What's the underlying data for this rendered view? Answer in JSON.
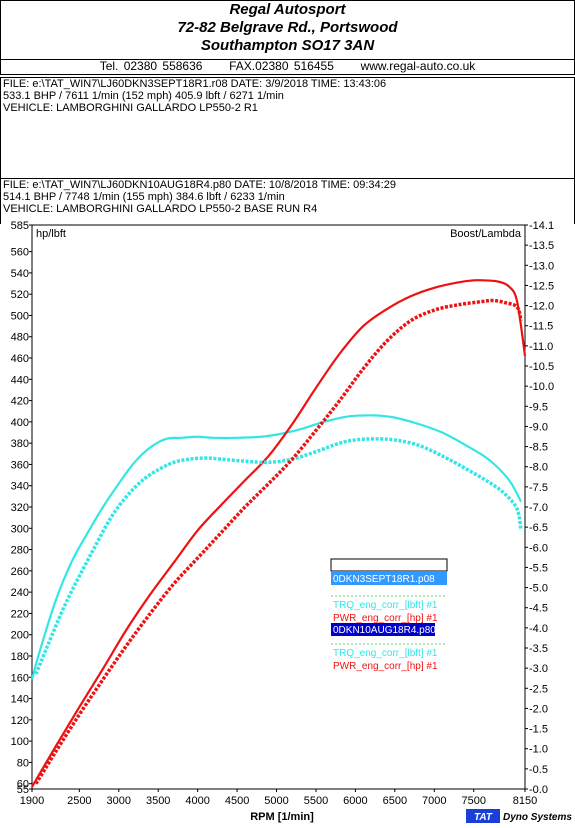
{
  "header": {
    "company": "Regal Autosport",
    "address1": "72-82 Belgrave Rd., Portswood",
    "address2": "Southampton SO17 3AN",
    "tel": "Tel. 02380 558636",
    "fax": "FAX.02380 516455",
    "web": "www.regal-auto.co.uk"
  },
  "run1": {
    "file": "FILE: e:\\TAT_WIN7\\LJ60DKN3SEPT18R1.r08  DATE: 3/9/2018  TIME: 13:43:06",
    "result": "533.1 BHP / 7611 1/min (152 mph)    405.9 lbft / 6271 1/min",
    "vehicle": "VEHICLE: LAMBORGHINI GALLARDO LP550-2 R1"
  },
  "run2": {
    "file": "FILE: e:\\TAT_WIN7\\LJ60DKN10AUG18R4.p80  DATE: 10/8/2018  TIME: 09:34:29",
    "result": "514.1 BHP / 7748 1/min (155 mph)    384.6 lbft / 6233 1/min",
    "vehicle": "VEHICLE: LAMBORGHINI GALLARDO LP550-2 BASE RUN R4"
  },
  "brand": {
    "tat": "TAT",
    "name": "Dyno Systems"
  },
  "legend": {
    "run1_name": "0DKN3SEPT18R1.p08",
    "run2_name": "0DKN10AUG18R4.p80",
    "trq_label": "TRQ_eng_corr_[lbft] #1",
    "pwr_label": "PWR_eng_corr_[hp] #1"
  },
  "colors": {
    "torque": "#33e6e6",
    "power": "#ee1111",
    "legend_run1": "#3399ff",
    "legend_run2": "#0000cc",
    "tat": "#1a3fd6"
  },
  "chart_data": {
    "type": "line",
    "xlabel": "RPM  [1/min]",
    "ylabel": "hp/lbft",
    "y2label": "Boost/Lambda",
    "xlim": [
      1900,
      8150
    ],
    "ylim": [
      55,
      585
    ],
    "y2lim": [
      -0.0,
      14.1
    ],
    "xticks": [
      1900,
      2500,
      3000,
      3500,
      4000,
      4500,
      5000,
      5500,
      6000,
      6500,
      7000,
      7500,
      8150
    ],
    "yticks": [
      55,
      60,
      80,
      100,
      120,
      140,
      160,
      180,
      200,
      220,
      240,
      260,
      280,
      300,
      320,
      340,
      360,
      380,
      400,
      420,
      440,
      460,
      480,
      500,
      520,
      540,
      560,
      585
    ],
    "y2ticks": [
      "-0.0",
      "-0.5",
      "-1.0",
      "-1.5",
      "-2.0",
      "-2.5",
      "-3.0",
      "-3.5",
      "-4.0",
      "-4.5",
      "-5.0",
      "-5.5",
      "-6.0",
      "-6.5",
      "-7.0",
      "-7.5",
      "-8.0",
      "-8.5",
      "-9.0",
      "-9.5",
      "-10.0",
      "-10.5",
      "-11.0",
      "-11.5",
      "-12.0",
      "-12.5",
      "-13.0",
      "-13.5",
      "-14.1"
    ],
    "series": [
      {
        "name": "TRQ_eng_corr_[lbft] #1",
        "run": "0DKN3SEPT18R1.p08",
        "color": "#33e6e6",
        "style": "solid",
        "x": [
          1900,
          2000,
          2200,
          2400,
          2600,
          2800,
          3000,
          3200,
          3400,
          3600,
          3800,
          4000,
          4200,
          4500,
          4800,
          5000,
          5300,
          5600,
          5900,
          6100,
          6271,
          6500,
          6800,
          7100,
          7400,
          7700,
          7950,
          8100
        ],
        "y": [
          158,
          185,
          232,
          268,
          295,
          320,
          342,
          362,
          376,
          384,
          385,
          386,
          385,
          385,
          386,
          388,
          393,
          400,
          405,
          406,
          406,
          404,
          398,
          390,
          378,
          364,
          345,
          325
        ]
      },
      {
        "name": "PWR_eng_corr_[hp] #1",
        "run": "0DKN3SEPT18R1.p08",
        "color": "#ee1111",
        "style": "solid",
        "x": [
          1900,
          2200,
          2500,
          2800,
          3100,
          3400,
          3700,
          4000,
          4300,
          4600,
          4900,
          5200,
          5500,
          5800,
          6100,
          6400,
          6700,
          7000,
          7300,
          7500,
          7611,
          7800,
          7950,
          8050,
          8150
        ],
        "y": [
          57,
          95,
          132,
          168,
          205,
          238,
          268,
          298,
          322,
          345,
          368,
          398,
          432,
          464,
          490,
          506,
          518,
          526,
          531,
          533,
          533,
          532,
          527,
          513,
          462
        ]
      },
      {
        "name": "TRQ_eng_corr_[lbft] #1",
        "run": "0DKN10AUG18R4.p80",
        "color": "#33e6e6",
        "style": "dotted",
        "x": [
          1950,
          2100,
          2300,
          2500,
          2700,
          2900,
          3100,
          3300,
          3500,
          3700,
          3900,
          4100,
          4300,
          4600,
          4900,
          5200,
          5500,
          5800,
          6000,
          6233,
          6500,
          6800,
          7100,
          7400,
          7700,
          7900,
          8050,
          8100
        ],
        "y": [
          163,
          190,
          225,
          255,
          283,
          310,
          330,
          345,
          355,
          362,
          365,
          366,
          365,
          363,
          362,
          365,
          372,
          380,
          383,
          384,
          383,
          378,
          368,
          356,
          343,
          332,
          318,
          298
        ]
      },
      {
        "name": "PWR_eng_corr_[hp] #1",
        "run": "0DKN10AUG18R4.p80",
        "color": "#ee1111",
        "style": "dotted",
        "x": [
          1950,
          2200,
          2500,
          2800,
          3100,
          3400,
          3700,
          4000,
          4300,
          4600,
          4900,
          5200,
          5500,
          5800,
          6100,
          6400,
          6700,
          7000,
          7300,
          7600,
          7748,
          7900,
          8050,
          8100
        ],
        "y": [
          60,
          90,
          125,
          158,
          190,
          220,
          248,
          272,
          296,
          320,
          342,
          365,
          392,
          420,
          450,
          476,
          495,
          505,
          510,
          513,
          514,
          512,
          508,
          495
        ]
      }
    ]
  }
}
